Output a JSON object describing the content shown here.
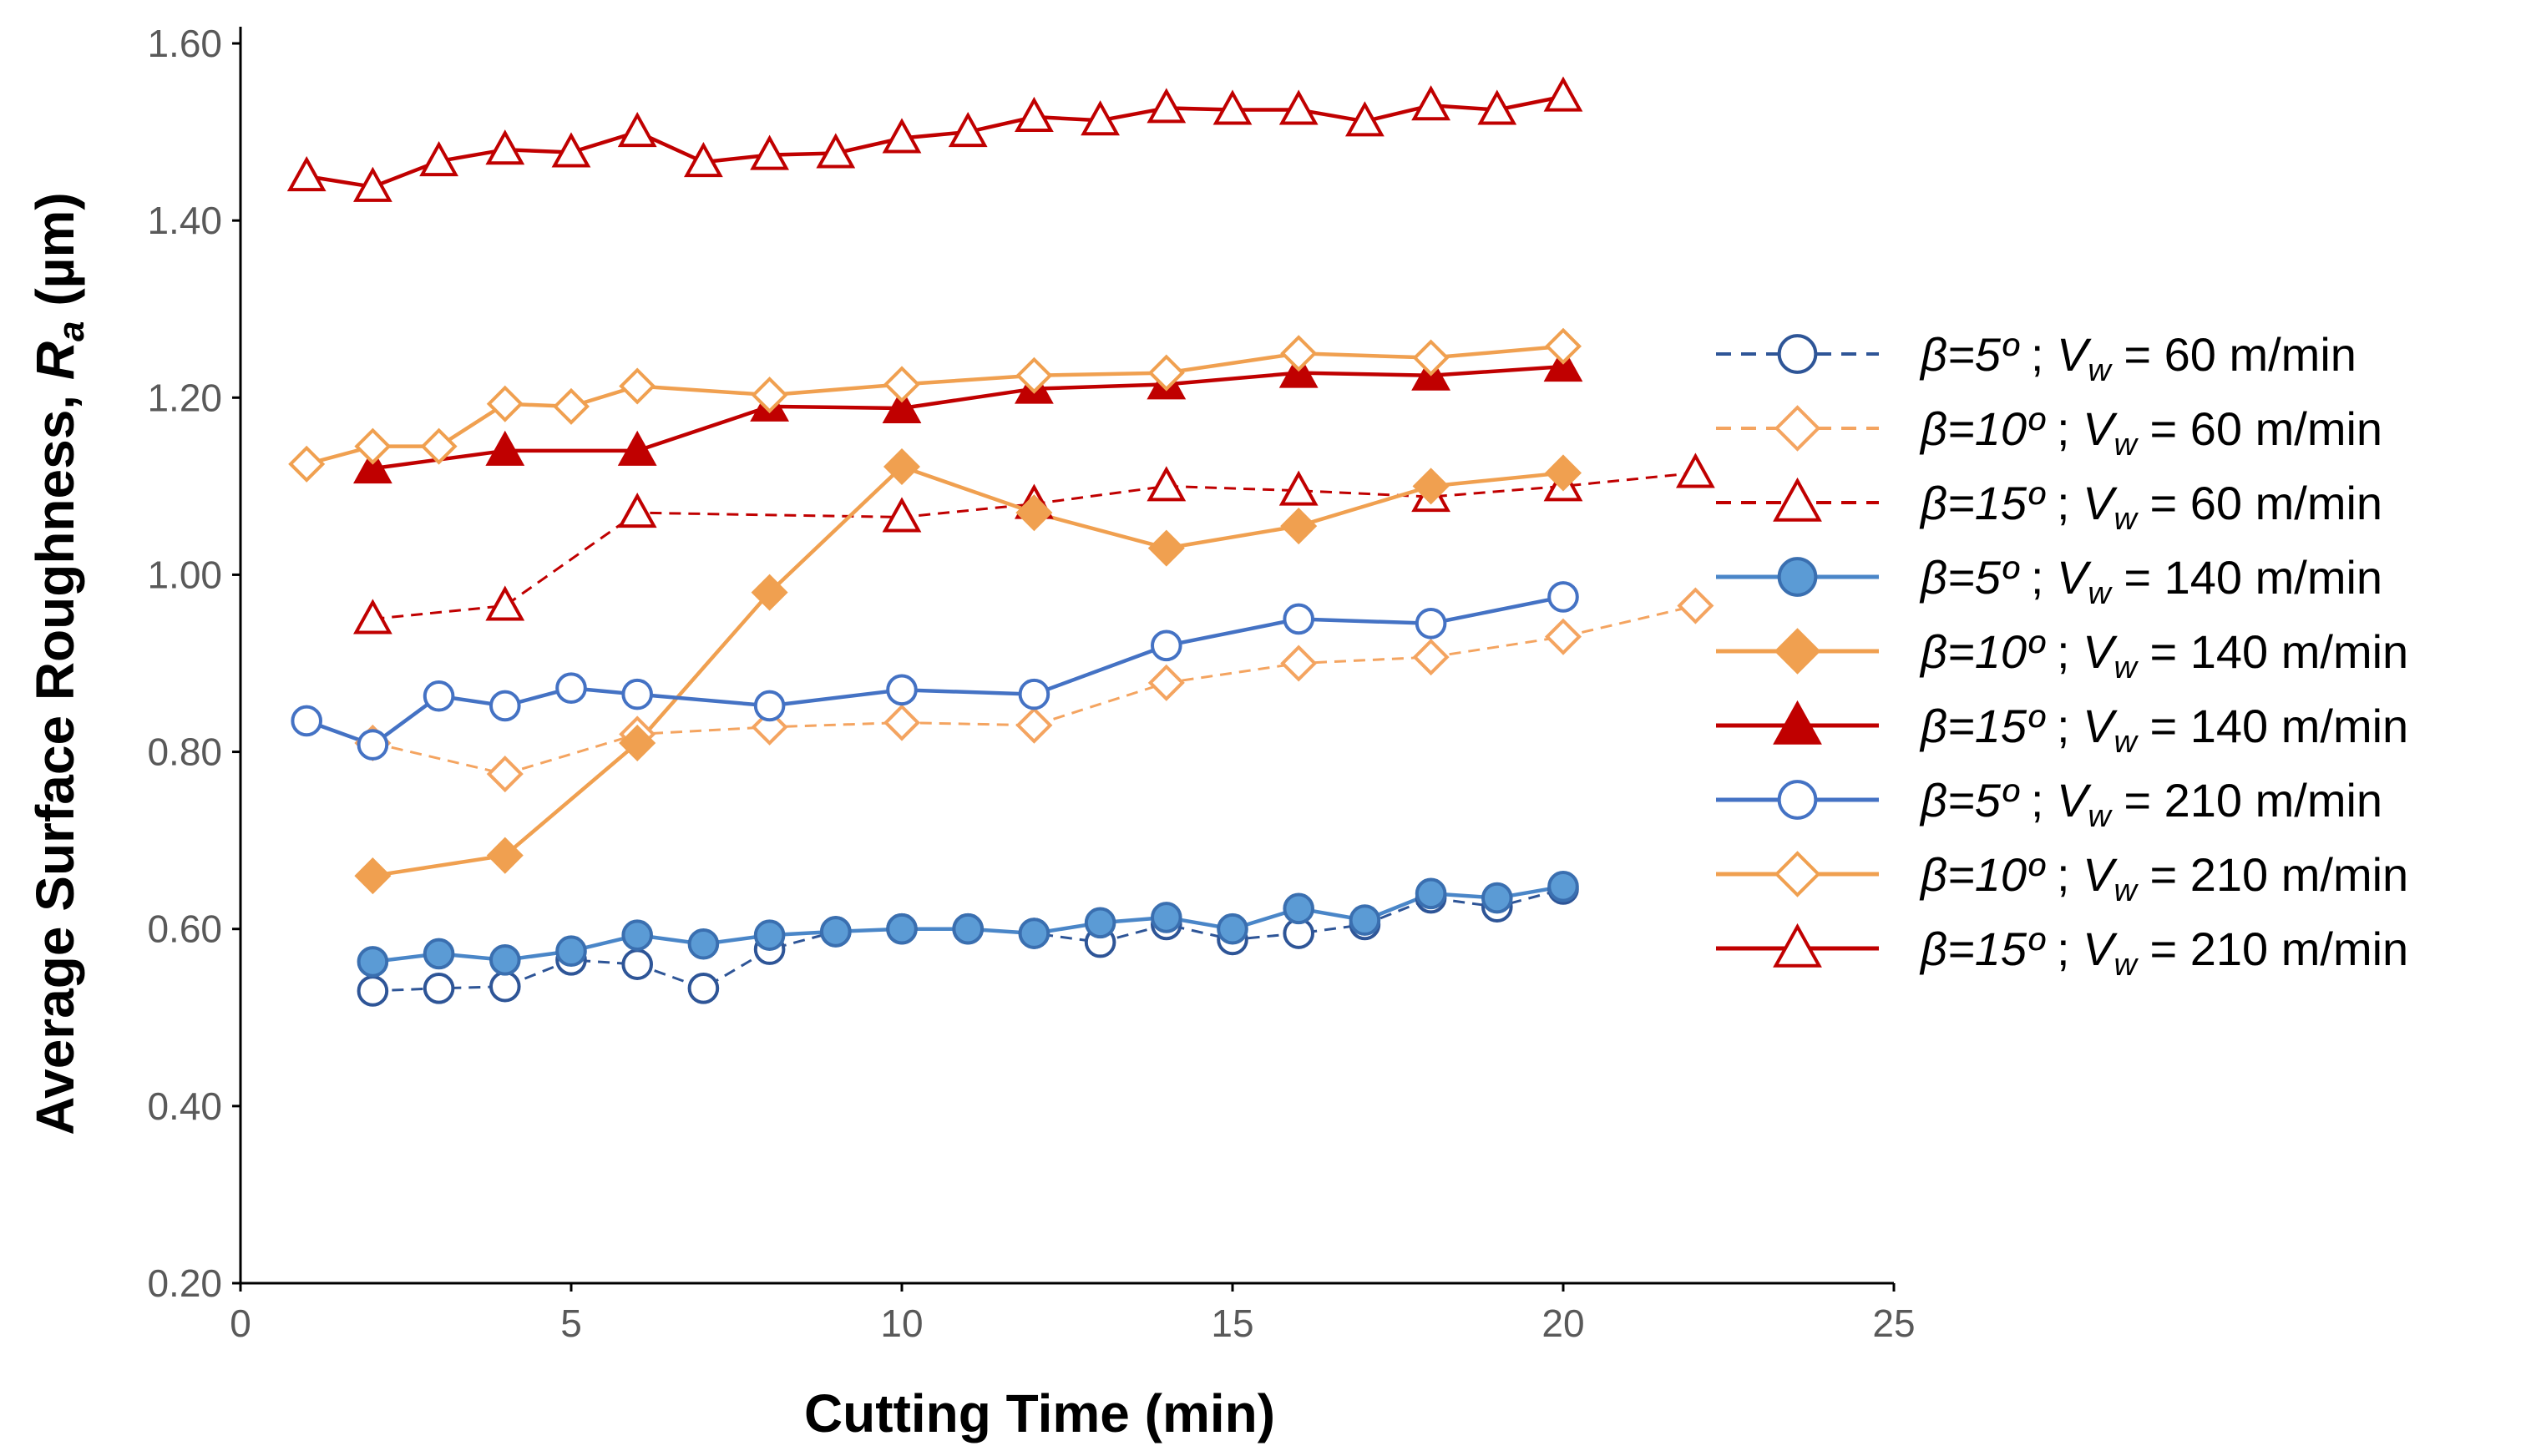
{
  "chart_data": {
    "type": "line",
    "xlabel": "Cutting Time  (min)",
    "ylabel": {
      "prefix": "Average Surface Roughness,  ",
      "var": "R",
      "sub": "a",
      "unit": " (µm)"
    },
    "xlim": [
      0,
      25
    ],
    "ylim": [
      0.2,
      1.6
    ],
    "xticks": [
      0,
      5,
      10,
      15,
      20,
      25
    ],
    "yticks": [
      0.2,
      0.4,
      0.6,
      0.8,
      1.0,
      1.2,
      1.4,
      1.6
    ],
    "ytick_labels": [
      "0.20",
      "0.40",
      "0.60",
      "0.80",
      "1.00",
      "1.20",
      "1.40",
      "1.60"
    ],
    "legend_position": "right",
    "series": [
      {
        "beta": "β=5º",
        "speed": "V",
        "speed_sub": "w",
        "speed_value": " = 60 m/min",
        "color": "#2e5597",
        "dash": "dashed",
        "marker": "circle-open",
        "x": [
          2,
          3,
          4,
          5,
          6,
          7,
          8,
          9,
          10,
          11,
          12,
          13,
          14,
          15,
          16,
          17,
          18,
          19,
          20
        ],
        "y": [
          0.53,
          0.533,
          0.535,
          0.565,
          0.56,
          0.533,
          0.577,
          0.597,
          0.6,
          0.6,
          0.595,
          0.585,
          0.605,
          0.588,
          0.595,
          0.605,
          0.635,
          0.625,
          0.645
        ]
      },
      {
        "beta": "β=10º",
        "speed": "V",
        "speed_sub": "w",
        "speed_value": " = 60 m/min",
        "color": "#f4a460",
        "dash": "dashed",
        "marker": "diamond-open",
        "x": [
          2,
          4,
          6,
          8,
          10,
          12,
          14,
          16,
          18,
          20,
          22
        ],
        "y": [
          0.81,
          0.775,
          0.82,
          0.828,
          0.833,
          0.83,
          0.878,
          0.9,
          0.907,
          0.93,
          0.965
        ]
      },
      {
        "beta": "β=15º",
        "speed": "V",
        "speed_sub": "w",
        "speed_value": " = 60 m/min",
        "color": "#c00000",
        "dash": "dashed",
        "marker": "triangle-open",
        "x": [
          2,
          4,
          6,
          10,
          12,
          14,
          16,
          18,
          20,
          22
        ],
        "y": [
          0.95,
          0.965,
          1.07,
          1.065,
          1.08,
          1.1,
          1.095,
          1.088,
          1.1,
          1.115
        ]
      },
      {
        "beta": "β=5º",
        "speed": "V",
        "speed_sub": "w",
        "speed_value": " = 140 m/min",
        "color": "#4a86c8",
        "dash": "solid",
        "marker": "circle-filled",
        "x": [
          2,
          3,
          4,
          5,
          6,
          7,
          8,
          9,
          10,
          11,
          12,
          13,
          14,
          15,
          16,
          17,
          18,
          19,
          20
        ],
        "y": [
          0.563,
          0.572,
          0.565,
          0.575,
          0.593,
          0.583,
          0.593,
          0.597,
          0.6,
          0.6,
          0.595,
          0.607,
          0.613,
          0.6,
          0.623,
          0.61,
          0.64,
          0.635,
          0.648
        ]
      },
      {
        "beta": "β=10º",
        "speed": "V",
        "speed_sub": "w",
        "speed_value": " = 140 m/min",
        "color": "#f0a050",
        "dash": "solid",
        "marker": "diamond-filled",
        "x": [
          2,
          4,
          6,
          8,
          10,
          12,
          14,
          16,
          18,
          20
        ],
        "y": [
          0.66,
          0.683,
          0.81,
          0.98,
          1.122,
          1.07,
          1.03,
          1.055,
          1.1,
          1.115
        ]
      },
      {
        "beta": "β=15º",
        "speed": "V",
        "speed_sub": "w",
        "speed_value": " = 140 m/min",
        "color": "#c00000",
        "dash": "solid",
        "marker": "triangle-filled",
        "x": [
          2,
          4,
          6,
          8,
          10,
          12,
          14,
          16,
          18,
          20
        ],
        "y": [
          1.12,
          1.14,
          1.14,
          1.19,
          1.188,
          1.21,
          1.215,
          1.228,
          1.225,
          1.235
        ]
      },
      {
        "beta": "β=5º",
        "speed": "V",
        "speed_sub": "w",
        "speed_value": " = 210 m/min",
        "color": "#4472c4",
        "dash": "solid",
        "marker": "circle-open",
        "x": [
          1,
          2,
          3,
          4,
          5,
          6,
          8,
          10,
          12,
          14,
          16,
          18,
          20
        ],
        "y": [
          0.835,
          0.808,
          0.863,
          0.852,
          0.872,
          0.865,
          0.852,
          0.87,
          0.865,
          0.92,
          0.95,
          0.945,
          0.975
        ]
      },
      {
        "beta": "β=10º",
        "speed": "V",
        "speed_sub": "w",
        "speed_value": " = 210 m/min",
        "color": "#f0a050",
        "dash": "solid",
        "marker": "diamond-open",
        "x": [
          1,
          2,
          3,
          4,
          5,
          6,
          8,
          10,
          12,
          14,
          16,
          18,
          20
        ],
        "y": [
          1.125,
          1.145,
          1.145,
          1.193,
          1.19,
          1.213,
          1.203,
          1.215,
          1.225,
          1.228,
          1.25,
          1.245,
          1.258
        ]
      },
      {
        "beta": "β=15º",
        "speed": "V",
        "speed_sub": "w",
        "speed_value": " = 210 m/min",
        "color": "#c00000",
        "dash": "solid",
        "marker": "triangle-open",
        "x": [
          1,
          2,
          3,
          4,
          5,
          6,
          7,
          8,
          9,
          10,
          11,
          12,
          13,
          14,
          15,
          16,
          17,
          18,
          19,
          20
        ],
        "y": [
          1.45,
          1.438,
          1.467,
          1.48,
          1.477,
          1.5,
          1.466,
          1.474,
          1.476,
          1.493,
          1.5,
          1.517,
          1.513,
          1.527,
          1.525,
          1.525,
          1.512,
          1.53,
          1.525,
          1.54
        ]
      }
    ]
  }
}
